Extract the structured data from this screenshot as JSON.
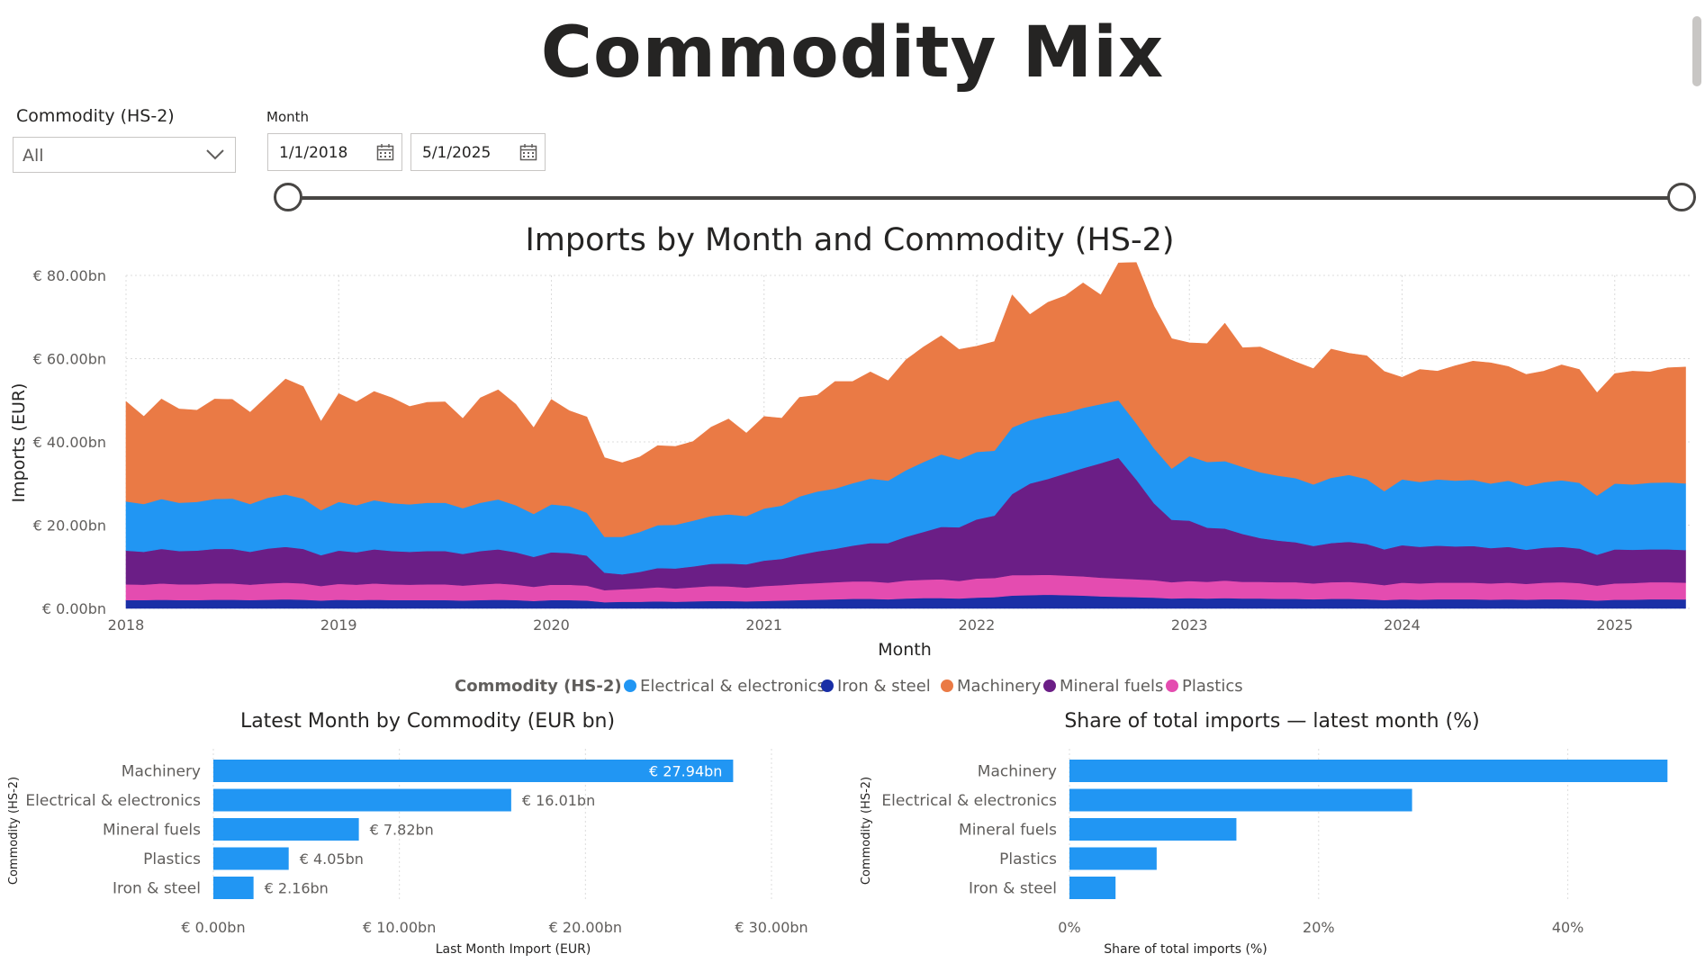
{
  "page": {
    "title": "Commodity Mix"
  },
  "filters": {
    "commodity": {
      "label": "Commodity (HS-2)",
      "value": "All"
    },
    "month": {
      "label": "Month",
      "start": "1/1/2018",
      "end": "5/1/2025"
    }
  },
  "colors": {
    "Electrical & electronics": "#2196F3",
    "Iron & steel": "#1A2FA6",
    "Machinery": "#EA7A45",
    "Mineral fuels": "#6B1E86",
    "Plastics": "#E44CB0",
    "bar": "#2196F3"
  },
  "chart_data": [
    {
      "type": "area",
      "stacked": true,
      "title": "Imports by Month and Commodity (HS-2)",
      "xlabel": "Month",
      "ylabel": "Imports (EUR)",
      "ylim": [
        0,
        80
      ],
      "y_ticks": [
        "€ 0.00bn",
        "€ 20.00bn",
        "€ 40.00bn",
        "€ 60.00bn",
        "€ 80.00bn"
      ],
      "x_ticks": [
        "2018",
        "2019",
        "2020",
        "2021",
        "2022",
        "2023",
        "2024",
        "2025"
      ],
      "legend_title": "Commodity (HS-2)",
      "legend_position": "bottom",
      "grid": true,
      "x": [
        "2018-01",
        "2018-02",
        "2018-03",
        "2018-04",
        "2018-05",
        "2018-06",
        "2018-07",
        "2018-08",
        "2018-09",
        "2018-10",
        "2018-11",
        "2018-12",
        "2019-01",
        "2019-02",
        "2019-03",
        "2019-04",
        "2019-05",
        "2019-06",
        "2019-07",
        "2019-08",
        "2019-09",
        "2019-10",
        "2019-11",
        "2019-12",
        "2020-01",
        "2020-02",
        "2020-03",
        "2020-04",
        "2020-05",
        "2020-06",
        "2020-07",
        "2020-08",
        "2020-09",
        "2020-10",
        "2020-11",
        "2020-12",
        "2021-01",
        "2021-02",
        "2021-03",
        "2021-04",
        "2021-05",
        "2021-06",
        "2021-07",
        "2021-08",
        "2021-09",
        "2021-10",
        "2021-11",
        "2021-12",
        "2022-01",
        "2022-02",
        "2022-03",
        "2022-04",
        "2022-05",
        "2022-06",
        "2022-07",
        "2022-08",
        "2022-09",
        "2022-10",
        "2022-11",
        "2022-12",
        "2023-01",
        "2023-02",
        "2023-03",
        "2023-04",
        "2023-05",
        "2023-06",
        "2023-07",
        "2023-08",
        "2023-09",
        "2023-10",
        "2023-11",
        "2023-12",
        "2024-01",
        "2024-02",
        "2024-03",
        "2024-04",
        "2024-05",
        "2024-06",
        "2024-07",
        "2024-08",
        "2024-09",
        "2024-10",
        "2024-11",
        "2024-12",
        "2025-01",
        "2025-02",
        "2025-03",
        "2025-04",
        "2025-05"
      ],
      "series": [
        {
          "name": "Iron & steel",
          "values": [
            2.0,
            2.0,
            2.1,
            2.0,
            2.0,
            2.1,
            2.1,
            2.0,
            2.1,
            2.2,
            2.1,
            1.9,
            2.1,
            2.0,
            2.1,
            2.0,
            2.0,
            2.0,
            2.0,
            1.9,
            2.0,
            2.1,
            2.0,
            1.8,
            2.0,
            2.0,
            1.9,
            1.5,
            1.6,
            1.6,
            1.7,
            1.6,
            1.7,
            1.8,
            1.8,
            1.7,
            1.8,
            1.9,
            2.0,
            2.1,
            2.2,
            2.3,
            2.3,
            2.2,
            2.4,
            2.5,
            2.5,
            2.4,
            2.6,
            2.7,
            3.1,
            3.2,
            3.3,
            3.2,
            3.1,
            2.9,
            2.8,
            2.7,
            2.6,
            2.4,
            2.5,
            2.4,
            2.5,
            2.4,
            2.4,
            2.3,
            2.3,
            2.2,
            2.3,
            2.3,
            2.2,
            2.0,
            2.2,
            2.1,
            2.2,
            2.2,
            2.2,
            2.1,
            2.2,
            2.1,
            2.2,
            2.2,
            2.1,
            1.9,
            2.1,
            2.1,
            2.2,
            2.2,
            2.16
          ]
        },
        {
          "name": "Plastics",
          "values": [
            3.8,
            3.7,
            3.9,
            3.8,
            3.8,
            3.9,
            3.9,
            3.7,
            3.9,
            4.0,
            3.9,
            3.5,
            3.8,
            3.7,
            3.9,
            3.8,
            3.7,
            3.8,
            3.8,
            3.6,
            3.8,
            3.9,
            3.7,
            3.4,
            3.7,
            3.7,
            3.6,
            2.9,
            3.0,
            3.2,
            3.4,
            3.2,
            3.4,
            3.6,
            3.5,
            3.3,
            3.6,
            3.7,
            3.9,
            4.0,
            4.1,
            4.2,
            4.2,
            4.0,
            4.3,
            4.4,
            4.5,
            4.2,
            4.6,
            4.6,
            4.9,
            4.8,
            4.8,
            4.7,
            4.6,
            4.5,
            4.4,
            4.3,
            4.2,
            3.9,
            4.1,
            4.0,
            4.2,
            4.0,
            4.0,
            4.0,
            4.0,
            3.8,
            4.0,
            4.1,
            3.9,
            3.6,
            4.0,
            3.9,
            4.0,
            4.0,
            4.0,
            3.9,
            4.0,
            3.8,
            4.0,
            4.1,
            4.0,
            3.6,
            3.9,
            4.0,
            4.1,
            4.1,
            4.05
          ]
        },
        {
          "name": "Mineral fuels",
          "values": [
            8.1,
            7.9,
            8.3,
            8.0,
            8.1,
            8.3,
            8.3,
            7.9,
            8.4,
            8.6,
            8.3,
            7.4,
            8.0,
            7.8,
            8.2,
            8.0,
            7.9,
            8.0,
            8.0,
            7.6,
            8.0,
            8.2,
            7.8,
            7.2,
            7.8,
            7.6,
            7.2,
            4.2,
            3.6,
            4.0,
            4.6,
            4.8,
            5.0,
            5.3,
            5.5,
            5.6,
            6.1,
            6.3,
            7.0,
            7.6,
            8.0,
            8.6,
            9.2,
            9.5,
            10.5,
            11.5,
            12.6,
            12.9,
            14.2,
            15.0,
            19.5,
            22.0,
            23.0,
            24.5,
            26.0,
            27.5,
            29.0,
            24.0,
            18.5,
            15.0,
            14.5,
            13.0,
            12.5,
            11.5,
            10.5,
            10.0,
            9.6,
            9.0,
            9.4,
            9.6,
            9.4,
            8.6,
            9.0,
            8.8,
            8.9,
            8.7,
            8.8,
            8.5,
            8.6,
            8.2,
            8.4,
            8.5,
            8.3,
            7.4,
            8.2,
            8.0,
            7.9,
            7.9,
            7.82
          ]
        },
        {
          "name": "Electrical & electronics",
          "values": [
            11.8,
            11.5,
            12.0,
            11.6,
            11.7,
            12.0,
            12.1,
            11.5,
            12.2,
            12.6,
            12.1,
            10.8,
            11.7,
            11.3,
            11.8,
            11.5,
            11.4,
            11.6,
            11.6,
            11.0,
            11.6,
            12.0,
            11.3,
            10.3,
            11.5,
            11.3,
            10.3,
            8.6,
            9.0,
            9.6,
            10.3,
            10.5,
            11.0,
            11.5,
            11.8,
            11.6,
            12.5,
            12.8,
            14.0,
            14.4,
            14.5,
            15.0,
            15.5,
            15.0,
            16.0,
            16.8,
            17.4,
            16.3,
            16.2,
            15.6,
            16.0,
            15.2,
            15.2,
            14.6,
            14.5,
            14.2,
            13.8,
            13.5,
            13.2,
            12.3,
            15.5,
            15.8,
            16.2,
            16.1,
            15.8,
            15.6,
            15.4,
            14.8,
            15.7,
            16.1,
            15.6,
            14.0,
            15.8,
            15.6,
            15.9,
            15.8,
            15.9,
            15.5,
            15.9,
            15.3,
            15.7,
            16.0,
            15.8,
            14.2,
            15.8,
            15.7,
            16.0,
            16.1,
            16.01
          ]
        },
        {
          "name": "Machinery",
          "values": [
            24.0,
            21.0,
            24.0,
            22.5,
            22.0,
            24.0,
            23.8,
            22.0,
            24.5,
            27.7,
            26.9,
            21.3,
            26.0,
            24.8,
            26.1,
            25.3,
            23.5,
            24.1,
            24.2,
            21.5,
            25.2,
            26.3,
            24.2,
            20.7,
            25.2,
            22.9,
            23.0,
            19.0,
            17.8,
            18.0,
            19.1,
            18.8,
            19.0,
            21.3,
            22.9,
            19.9,
            22.1,
            21.0,
            23.8,
            23.1,
            25.7,
            24.4,
            25.6,
            24.0,
            26.5,
            27.6,
            28.5,
            26.4,
            25.4,
            26.2,
            31.8,
            25.4,
            27.2,
            28.1,
            30.0,
            26.2,
            33.0,
            38.6,
            34.1,
            31.2,
            27.2,
            28.4,
            33.1,
            28.6,
            30.1,
            29.1,
            27.9,
            27.8,
            30.9,
            29.2,
            29.6,
            28.7,
            24.5,
            27.0,
            26.0,
            27.6,
            28.5,
            29.0,
            27.4,
            26.8,
            26.7,
            27.7,
            27.2,
            24.7,
            26.4,
            27.2,
            26.6,
            27.5,
            27.94
          ]
        }
      ]
    },
    {
      "type": "bar",
      "orientation": "horizontal",
      "title": "Latest Month by Commodity (EUR bn)",
      "xlabel": "Last Month Import (EUR)",
      "ylabel": "Commodity (HS-2)",
      "xlim": [
        0,
        30
      ],
      "x_ticks": [
        "€ 0.00bn",
        "€ 10.00bn",
        "€ 20.00bn",
        "€ 30.00bn"
      ],
      "categories": [
        "Machinery",
        "Electrical & electronics",
        "Mineral fuels",
        "Plastics",
        "Iron & steel"
      ],
      "values": [
        27.94,
        16.01,
        7.82,
        4.05,
        2.16
      ],
      "data_labels": [
        "€ 27.94bn",
        "€ 16.01bn",
        "€ 7.82bn",
        "€ 4.05bn",
        "€ 2.16bn"
      ]
    },
    {
      "type": "bar",
      "orientation": "horizontal",
      "title": "Share of total imports — latest month (%)",
      "xlabel": "Share of total imports (%)",
      "ylabel": "Commodity (HS-2)",
      "xlim": [
        0,
        50
      ],
      "x_ticks": [
        "0%",
        "20%",
        "40%"
      ],
      "categories": [
        "Machinery",
        "Electrical & electronics",
        "Mineral fuels",
        "Plastics",
        "Iron & steel"
      ],
      "values": [
        48.0,
        27.5,
        13.4,
        7.0,
        3.7
      ]
    }
  ]
}
